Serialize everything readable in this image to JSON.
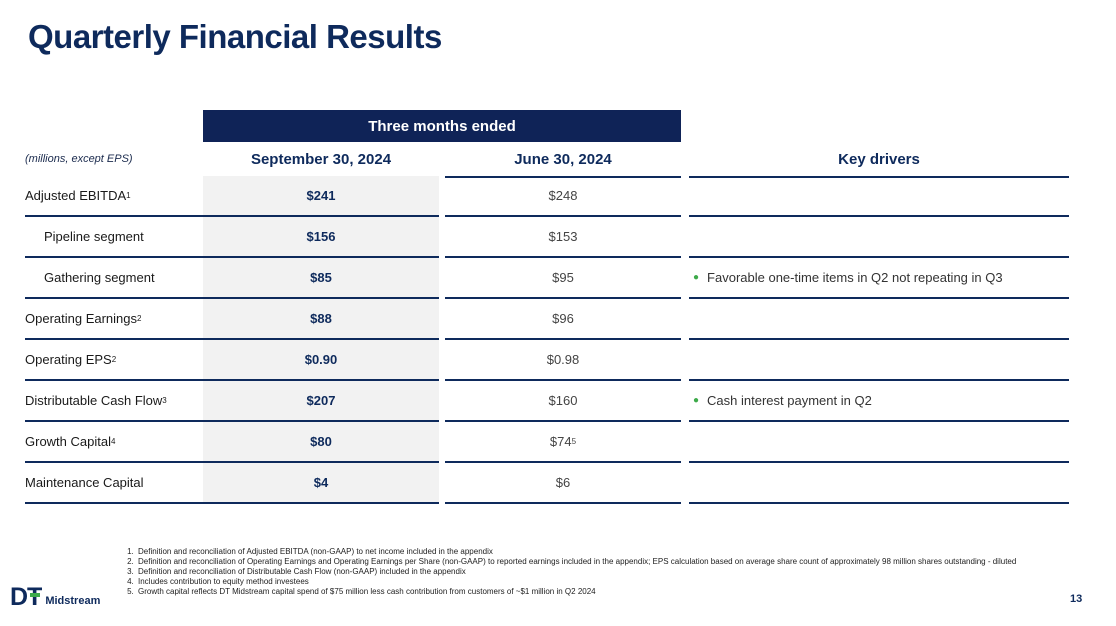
{
  "title": "Quarterly Financial Results",
  "table": {
    "band_label": "Three months ended",
    "units_label": "(millions, except EPS)",
    "columns": [
      "September 30, 2024",
      "June 30, 2024",
      "Key drivers"
    ],
    "rows": [
      {
        "label": "Adjusted EBITDA",
        "sup": "1",
        "q3": "$241",
        "q2": "$248",
        "q2_sup": "",
        "driver": ""
      },
      {
        "label": "Pipeline segment",
        "sup": "",
        "q3": "$156",
        "q2": "$153",
        "q2_sup": "",
        "driver": ""
      },
      {
        "label": "Gathering segment",
        "sup": "",
        "q3": "$85",
        "q2": "$95",
        "q2_sup": "",
        "driver": "Favorable one-time items in Q2 not repeating in Q3"
      },
      {
        "label": "Operating Earnings",
        "sup": "2",
        "q3": "$88",
        "q2": "$96",
        "q2_sup": "",
        "driver": ""
      },
      {
        "label": "Operating EPS",
        "sup": "2",
        "q3": "$0.90",
        "q2": "$0.98",
        "q2_sup": "",
        "driver": ""
      },
      {
        "label": "Distributable Cash Flow",
        "sup": "3",
        "q3": "$207",
        "q2": "$160",
        "q2_sup": "",
        "driver": "Cash interest payment in Q2"
      },
      {
        "label": "Growth Capital",
        "sup": "4",
        "q3": "$80",
        "q2": "$74",
        "q2_sup": "5",
        "driver": ""
      },
      {
        "label": "Maintenance Capital",
        "sup": "",
        "q3": "$4",
        "q2": "$6",
        "q2_sup": "",
        "driver": ""
      }
    ]
  },
  "footnotes": [
    "Definition and reconciliation of Adjusted EBITDA (non-GAAP) to net income included in the appendix",
    "Definition and reconciliation of Operating Earnings and Operating Earnings per Share (non-GAAP) to reported earnings included in the appendix; EPS calculation based on average share count of approximately 98 million shares outstanding - diluted",
    "Definition and reconciliation of Distributable Cash Flow (non-GAAP) included in the appendix",
    "Includes contribution to equity method investees",
    "Growth capital reflects DT Midstream capital spend of $75 million less cash contribution from customers of ~$1 million in Q2 2024"
  ],
  "logo": {
    "mark": "DT",
    "wordmark": "Midstream"
  },
  "page_number": "13",
  "colors": {
    "navy": "#0e2a5c",
    "band": "#0f2357",
    "accent_green": "#3daa4a",
    "shade": "#f2f2f2"
  }
}
